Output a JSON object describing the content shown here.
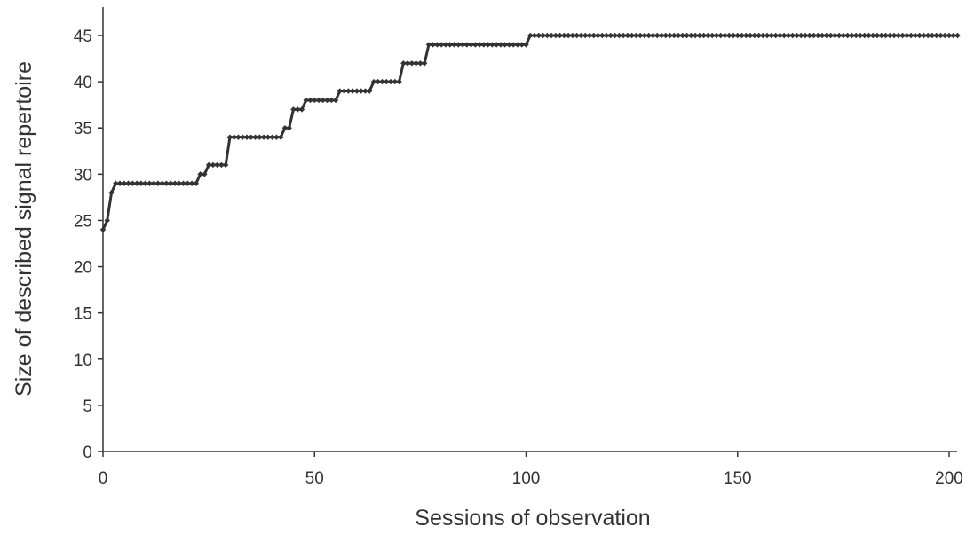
{
  "chart_data": {
    "type": "line",
    "title": "",
    "xlabel": "Sessions of observation",
    "ylabel": "Size of described signal repertoire",
    "xlim": [
      0,
      202
    ],
    "ylim": [
      0,
      48
    ],
    "xticks": [
      0,
      50,
      100,
      150,
      200
    ],
    "yticks": [
      0,
      5,
      10,
      15,
      20,
      25,
      30,
      35,
      40,
      45
    ],
    "grid": false,
    "legend": "none",
    "line_color": "#333333",
    "marker": "diamond",
    "series": [
      {
        "steps": [
          {
            "x": 0,
            "y": 24
          },
          {
            "x": 1,
            "y": 25
          },
          {
            "x": 2,
            "y": 28
          },
          {
            "x": 3,
            "y": 29
          },
          {
            "x": 23,
            "y": 30
          },
          {
            "x": 25,
            "y": 31
          },
          {
            "x": 30,
            "y": 34
          },
          {
            "x": 43,
            "y": 35
          },
          {
            "x": 45,
            "y": 37
          },
          {
            "x": 48,
            "y": 38
          },
          {
            "x": 56,
            "y": 39
          },
          {
            "x": 64,
            "y": 40
          },
          {
            "x": 71,
            "y": 42
          },
          {
            "x": 77,
            "y": 44
          },
          {
            "x": 101,
            "y": 45
          }
        ],
        "x_end": 202
      }
    ]
  }
}
